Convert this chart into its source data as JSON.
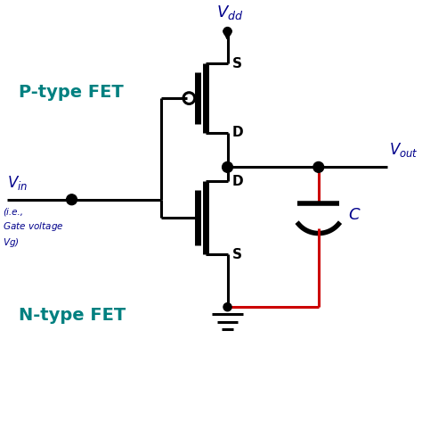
{
  "fig_width": 4.74,
  "fig_height": 4.91,
  "dpi": 100,
  "bg_color": "#ffffff",
  "blue": "#00008B",
  "teal": "#008080",
  "black": "#000000",
  "red": "#cc0000",
  "p_type_label": "P-type FET",
  "n_type_label": "N-type FET",
  "vdd_label": "$V_{dd}$",
  "vin_label": "$V_{in}$",
  "vout_label": "$V_{out}$",
  "c_label": "$C$"
}
